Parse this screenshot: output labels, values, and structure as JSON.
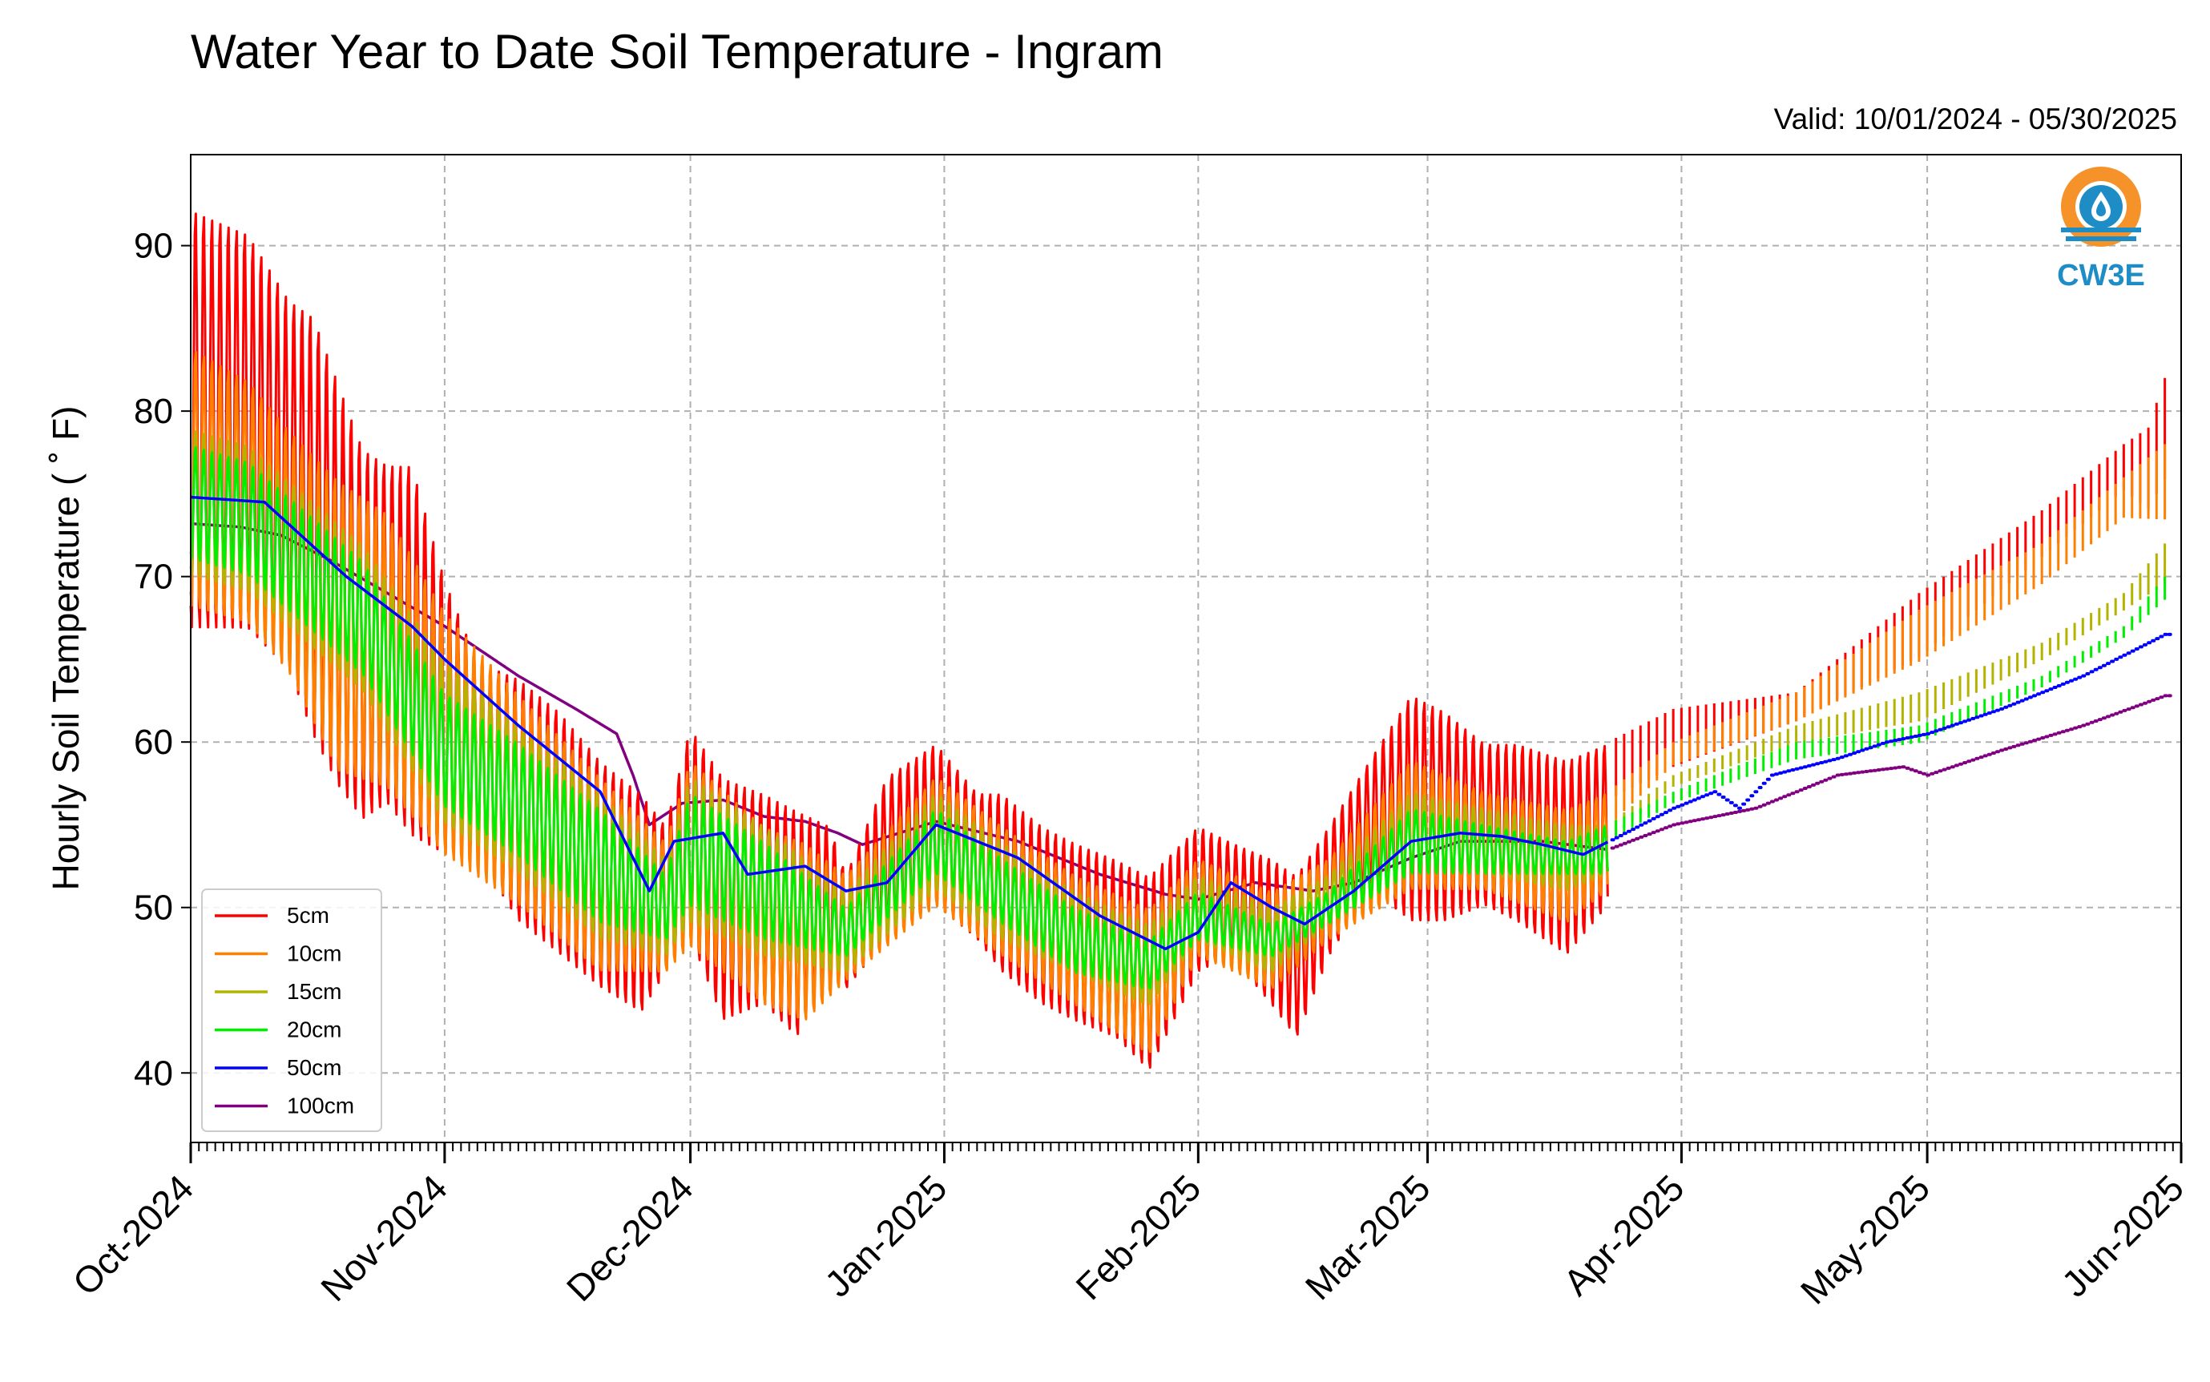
{
  "chart_data": {
    "type": "line",
    "title": "Water Year to Date Soil Temperature - Ingram",
    "subtitle": "Valid: 10/01/2024 - 05/30/2025",
    "xlabel": "",
    "ylabel": "Hourly Soil Temperature ( ˚ F)",
    "xlim": [
      "2024-10-01",
      "2025-06-01"
    ],
    "ylim": [
      35.8,
      95.5
    ],
    "y_ticks": [
      40,
      50,
      60,
      70,
      80,
      90
    ],
    "x_ticks": [
      {
        "date": "2024-10-01",
        "label": "Oct-2024"
      },
      {
        "date": "2024-11-01",
        "label": "Nov-2024"
      },
      {
        "date": "2024-12-01",
        "label": "Dec-2024"
      },
      {
        "date": "2025-01-01",
        "label": "Jan-2025"
      },
      {
        "date": "2025-02-01",
        "label": "Feb-2025"
      },
      {
        "date": "2025-03-01",
        "label": "Mar-2025"
      },
      {
        "date": "2025-04-01",
        "label": "Apr-2025"
      },
      {
        "date": "2025-05-01",
        "label": "May-2025"
      },
      {
        "date": "2025-06-01",
        "label": "Jun-2025"
      }
    ],
    "grid": true,
    "legend_position": "lower-left",
    "series": [
      {
        "name": "5cm",
        "color": "#ff0000",
        "diurnal": true,
        "points": [
          [
            "2024-10-01",
            92.5,
            66.5
          ],
          [
            "2024-10-08",
            91,
            66.5
          ],
          [
            "2024-10-13",
            87,
            64
          ],
          [
            "2024-10-16",
            86,
            60
          ],
          [
            "2024-10-19",
            82,
            57
          ],
          [
            "2024-10-22",
            78,
            55
          ],
          [
            "2024-10-25",
            77,
            56
          ],
          [
            "2024-10-28",
            77,
            54
          ],
          [
            "2024-11-01",
            70,
            53
          ],
          [
            "2024-11-05",
            65,
            53
          ],
          [
            "2024-11-10",
            64,
            49
          ],
          [
            "2024-11-15",
            62,
            47
          ],
          [
            "2024-11-20",
            59,
            45
          ],
          [
            "2024-11-25",
            57,
            43.5
          ],
          [
            "2024-11-28",
            55,
            46
          ],
          [
            "2024-12-01",
            61,
            48
          ],
          [
            "2024-12-05",
            58,
            43
          ],
          [
            "2024-12-10",
            57,
            44
          ],
          [
            "2024-12-14",
            56,
            42
          ],
          [
            "2024-12-18",
            55,
            46
          ],
          [
            "2024-12-20",
            52,
            45
          ],
          [
            "2024-12-25",
            58,
            48
          ],
          [
            "2024-12-31",
            60,
            50
          ],
          [
            "2025-01-05",
            57,
            48
          ],
          [
            "2025-01-08",
            57,
            46
          ],
          [
            "2025-01-13",
            55,
            44
          ],
          [
            "2025-01-17",
            54,
            43
          ],
          [
            "2025-01-22",
            53,
            42
          ],
          [
            "2025-01-26",
            52,
            40
          ],
          [
            "2025-02-01",
            55,
            46
          ],
          [
            "2025-02-05",
            54,
            47
          ],
          [
            "2025-02-10",
            53,
            44
          ],
          [
            "2025-02-13",
            52,
            42
          ],
          [
            "2025-02-17",
            55,
            47
          ],
          [
            "2025-02-22",
            59,
            51
          ],
          [
            "2025-02-27",
            63,
            49
          ],
          [
            "2025-03-03",
            62,
            49
          ],
          [
            "2025-03-08",
            60,
            50
          ],
          [
            "2025-03-12",
            60,
            49
          ],
          [
            "2025-03-18",
            59,
            47
          ],
          [
            "2025-03-23",
            60,
            50
          ],
          [
            "2025-03-31",
            62,
            52
          ],
          [
            "2025-04-15",
            63,
            58
          ],
          [
            "2025-04-30",
            69,
            58
          ],
          [
            "2025-05-15",
            74,
            66
          ],
          [
            "2025-05-25",
            78,
            70
          ],
          [
            "2025-05-28",
            79,
            65
          ],
          [
            "2025-05-30",
            82,
            64.5
          ]
        ]
      },
      {
        "name": "10cm",
        "color": "#ff8000",
        "diurnal": true,
        "points": [
          [
            "2024-10-01",
            84,
            68
          ],
          [
            "2024-10-08",
            82,
            67
          ],
          [
            "2024-10-13",
            79,
            64
          ],
          [
            "2024-10-19",
            76,
            58
          ],
          [
            "2024-10-25",
            74,
            57
          ],
          [
            "2024-11-01",
            68,
            53
          ],
          [
            "2024-11-10",
            63,
            50
          ],
          [
            "2024-11-20",
            58,
            46
          ],
          [
            "2024-11-28",
            54,
            46
          ],
          [
            "2024-12-01",
            59,
            47.5
          ],
          [
            "2024-12-10",
            55,
            44
          ],
          [
            "2024-12-15",
            54,
            43
          ],
          [
            "2024-12-20",
            52,
            45.5
          ],
          [
            "2024-12-31",
            58,
            50
          ],
          [
            "2025-01-08",
            55,
            47
          ],
          [
            "2025-01-17",
            52,
            44
          ],
          [
            "2025-01-26",
            50,
            41
          ],
          [
            "2025-02-01",
            53,
            47
          ],
          [
            "2025-02-10",
            51,
            45
          ],
          [
            "2025-02-17",
            53,
            48
          ],
          [
            "2025-02-27",
            59,
            51
          ],
          [
            "2025-03-08",
            57,
            51
          ],
          [
            "2025-03-18",
            56,
            49
          ],
          [
            "2025-03-23",
            57,
            51
          ],
          [
            "2025-03-31",
            60,
            56
          ],
          [
            "2025-04-15",
            63,
            58
          ],
          [
            "2025-04-30",
            68,
            59
          ],
          [
            "2025-05-15",
            72,
            65
          ],
          [
            "2025-05-25",
            76,
            69
          ],
          [
            "2025-05-30",
            78,
            65
          ]
        ]
      },
      {
        "name": "15cm",
        "color": "#b3b300",
        "diurnal": true,
        "points": [
          [
            "2024-10-01",
            79,
            70
          ],
          [
            "2024-10-08",
            78,
            69
          ],
          [
            "2024-10-15",
            75,
            66
          ],
          [
            "2024-10-22",
            72,
            63
          ],
          [
            "2024-11-01",
            65,
            55
          ],
          [
            "2024-11-10",
            61,
            52
          ],
          [
            "2024-11-20",
            57,
            48
          ],
          [
            "2024-11-28",
            53,
            47
          ],
          [
            "2024-12-01",
            58,
            49
          ],
          [
            "2024-12-10",
            55,
            47
          ],
          [
            "2024-12-20",
            51,
            46
          ],
          [
            "2024-12-31",
            57,
            51
          ],
          [
            "2025-01-08",
            54,
            48
          ],
          [
            "2025-01-17",
            51,
            46
          ],
          [
            "2025-01-26",
            49,
            44
          ],
          [
            "2025-02-01",
            52,
            48
          ],
          [
            "2025-02-10",
            50,
            46
          ],
          [
            "2025-02-17",
            52,
            49
          ],
          [
            "2025-02-27",
            57,
            52
          ],
          [
            "2025-03-08",
            56,
            52
          ],
          [
            "2025-03-18",
            55,
            51
          ],
          [
            "2025-03-23",
            55,
            52
          ],
          [
            "2025-03-31",
            58,
            56
          ],
          [
            "2025-04-15",
            61,
            58
          ],
          [
            "2025-04-30",
            63,
            58
          ],
          [
            "2025-05-15",
            66,
            63
          ],
          [
            "2025-05-25",
            69,
            66
          ],
          [
            "2025-05-30",
            72,
            65
          ]
        ]
      },
      {
        "name": "20cm",
        "color": "#00ee00",
        "diurnal": true,
        "points": [
          [
            "2024-10-01",
            78,
            71
          ],
          [
            "2024-10-08",
            77,
            70
          ],
          [
            "2024-10-15",
            74,
            67
          ],
          [
            "2024-10-22",
            71,
            64
          ],
          [
            "2024-11-01",
            63,
            56
          ],
          [
            "2024-11-10",
            60,
            53
          ],
          [
            "2024-11-20",
            56,
            49
          ],
          [
            "2024-11-28",
            52,
            48
          ],
          [
            "2024-12-01",
            57,
            50
          ],
          [
            "2024-12-10",
            54,
            48
          ],
          [
            "2024-12-20",
            50,
            47
          ],
          [
            "2024-12-31",
            56,
            52
          ],
          [
            "2025-01-08",
            53,
            49
          ],
          [
            "2025-01-17",
            50,
            46
          ],
          [
            "2025-01-26",
            48,
            45
          ],
          [
            "2025-02-01",
            51,
            48
          ],
          [
            "2025-02-10",
            49,
            47
          ],
          [
            "2025-02-17",
            51,
            49
          ],
          [
            "2025-02-27",
            56,
            52
          ],
          [
            "2025-03-08",
            55,
            52
          ],
          [
            "2025-03-18",
            54,
            52
          ],
          [
            "2025-03-23",
            55,
            52
          ],
          [
            "2025-03-31",
            57,
            55
          ],
          [
            "2025-04-15",
            60,
            57
          ],
          [
            "2025-04-30",
            61,
            58
          ],
          [
            "2025-05-15",
            64,
            62
          ],
          [
            "2025-05-25",
            67,
            65
          ],
          [
            "2025-05-30",
            70,
            66
          ]
        ]
      },
      {
        "name": "50cm",
        "color": "#0000ff",
        "diurnal": false,
        "points": [
          [
            "2024-10-01",
            74.8
          ],
          [
            "2024-10-10",
            74.5
          ],
          [
            "2024-10-20",
            70
          ],
          [
            "2024-10-28",
            67
          ],
          [
            "2024-11-01",
            65
          ],
          [
            "2024-11-10",
            61
          ],
          [
            "2024-11-15",
            59
          ],
          [
            "2024-11-20",
            57
          ],
          [
            "2024-11-25",
            52
          ],
          [
            "2024-11-26",
            51
          ],
          [
            "2024-11-29",
            54
          ],
          [
            "2024-12-05",
            54.5
          ],
          [
            "2024-12-08",
            52
          ],
          [
            "2024-12-15",
            52.5
          ],
          [
            "2024-12-20",
            51
          ],
          [
            "2024-12-25",
            51.5
          ],
          [
            "2024-12-31",
            55
          ],
          [
            "2025-01-05",
            54
          ],
          [
            "2025-01-10",
            53
          ],
          [
            "2025-01-20",
            49.5
          ],
          [
            "2025-01-28",
            47.5
          ],
          [
            "2025-02-01",
            48.5
          ],
          [
            "2025-02-05",
            51.5
          ],
          [
            "2025-02-10",
            50
          ],
          [
            "2025-02-14",
            49
          ],
          [
            "2025-02-20",
            51
          ],
          [
            "2025-02-27",
            54
          ],
          [
            "2025-03-05",
            54.5
          ],
          [
            "2025-03-10",
            54.3
          ],
          [
            "2025-03-15",
            53.8
          ],
          [
            "2025-03-20",
            53.2
          ],
          [
            "2025-03-31",
            56
          ],
          [
            "2025-04-05",
            57
          ],
          [
            "2025-04-08",
            56
          ],
          [
            "2025-04-12",
            58
          ],
          [
            "2025-04-20",
            59
          ],
          [
            "2025-04-26",
            60
          ],
          [
            "2025-05-01",
            60.5
          ],
          [
            "2025-05-10",
            62
          ],
          [
            "2025-05-20",
            64
          ],
          [
            "2025-05-30",
            66.5
          ]
        ]
      },
      {
        "name": "100cm",
        "color": "#800080",
        "diurnal": false,
        "points": [
          [
            "2024-10-01",
            73.2
          ],
          [
            "2024-10-07",
            73
          ],
          [
            "2024-10-12",
            72.5
          ],
          [
            "2024-10-18",
            71
          ],
          [
            "2024-10-25",
            69
          ],
          [
            "2024-11-01",
            67
          ],
          [
            "2024-11-10",
            64
          ],
          [
            "2024-11-17",
            62
          ],
          [
            "2024-11-22",
            60.5
          ],
          [
            "2024-11-24",
            58
          ],
          [
            "2024-11-26",
            55
          ],
          [
            "2024-11-30",
            56.3
          ],
          [
            "2024-12-05",
            56.5
          ],
          [
            "2024-12-10",
            55.5
          ],
          [
            "2024-12-15",
            55.2
          ],
          [
            "2024-12-19",
            54.5
          ],
          [
            "2024-12-22",
            53.8
          ],
          [
            "2024-12-31",
            55.2
          ],
          [
            "2025-01-10",
            54
          ],
          [
            "2025-01-20",
            52
          ],
          [
            "2025-01-28",
            50.8
          ],
          [
            "2025-02-01",
            50.5
          ],
          [
            "2025-02-08",
            51.5
          ],
          [
            "2025-02-15",
            51
          ],
          [
            "2025-02-20",
            51.5
          ],
          [
            "2025-02-27",
            53
          ],
          [
            "2025-03-05",
            54
          ],
          [
            "2025-03-15",
            54
          ],
          [
            "2025-03-23",
            53.5
          ],
          [
            "2025-03-31",
            55
          ],
          [
            "2025-04-10",
            56
          ],
          [
            "2025-04-20",
            58
          ],
          [
            "2025-04-28",
            58.5
          ],
          [
            "2025-05-01",
            58
          ],
          [
            "2025-05-10",
            59.5
          ],
          [
            "2025-05-20",
            61
          ],
          [
            "2025-05-30",
            62.8
          ]
        ]
      }
    ]
  },
  "logo": {
    "text": "CW3E",
    "colors": {
      "orange": "#f5922a",
      "blue": "#1f8dc5"
    }
  }
}
